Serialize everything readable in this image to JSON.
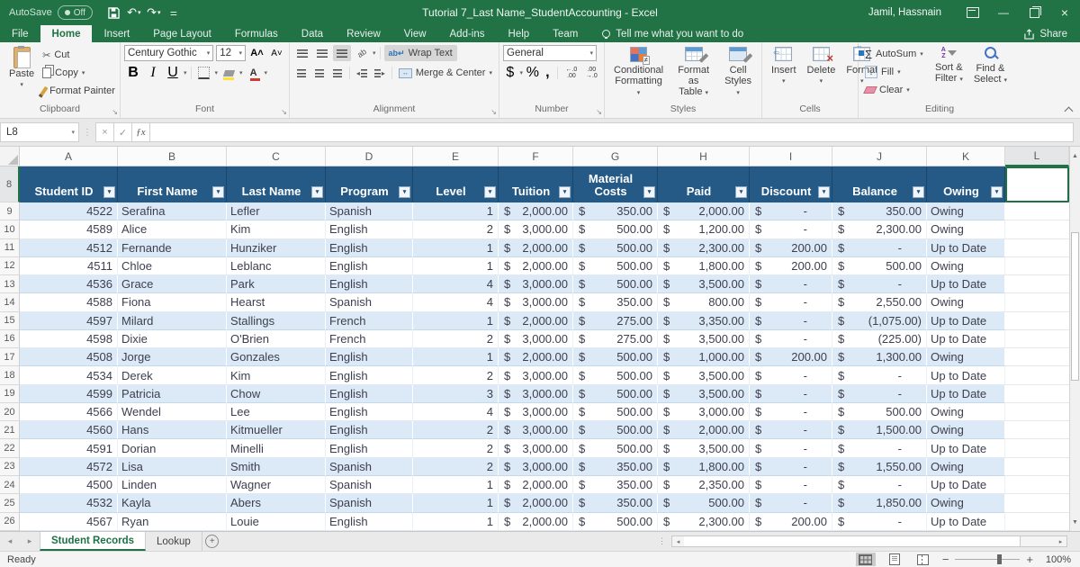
{
  "colors": {
    "title_green": "#217346",
    "table_header_blue": "#255A87",
    "band_blue": "#DCE9F6",
    "selection_green": "#1E7145",
    "fill_yellow": "#FFE13B",
    "font_color_red": "#D03B2F"
  },
  "titlebar": {
    "autosave": "AutoSave",
    "autosave_state": "Off",
    "title": "Tutorial 7_Last Name_StudentAccounting  -  Excel",
    "user": "Jamil, Hassnain"
  },
  "tabs": {
    "items": [
      {
        "label": "File"
      },
      {
        "label": "Home",
        "active": true
      },
      {
        "label": "Insert"
      },
      {
        "label": "Page Layout"
      },
      {
        "label": "Formulas"
      },
      {
        "label": "Data"
      },
      {
        "label": "Review"
      },
      {
        "label": "View"
      },
      {
        "label": "Add-ins"
      },
      {
        "label": "Help"
      },
      {
        "label": "Team"
      }
    ],
    "tell_me": "Tell me what you want to do",
    "share": "Share"
  },
  "ribbon": {
    "clipboard": {
      "label": "Clipboard",
      "paste": "Paste",
      "cut": "Cut",
      "copy": "Copy",
      "format_painter": "Format Painter"
    },
    "font": {
      "label": "Font",
      "family": "Century Gothic",
      "size": "12",
      "bold": "B",
      "italic": "I",
      "underline": "U"
    },
    "alignment": {
      "label": "Alignment",
      "wrap_text": "Wrap Text",
      "merge_center": "Merge & Center"
    },
    "number": {
      "label": "Number",
      "format": "General",
      "currency": "$",
      "percent": "%",
      "comma": ","
    },
    "styles": {
      "label": "Styles",
      "conditional_line1": "Conditional",
      "conditional_line2": "Formatting",
      "format_table_line1": "Format as",
      "format_table_line2": "Table",
      "cell_styles_line1": "Cell",
      "cell_styles_line2": "Styles"
    },
    "cells": {
      "label": "Cells",
      "insert": "Insert",
      "delete": "Delete",
      "format": "Format"
    },
    "editing": {
      "label": "Editing",
      "autosum": "AutoSum",
      "fill": "Fill",
      "clear": "Clear",
      "sort_line1": "Sort &",
      "sort_line2": "Filter",
      "find_line1": "Find &",
      "find_line2": "Select"
    }
  },
  "formula_bar": {
    "name_box": "L8",
    "formula": ""
  },
  "sheet": {
    "columns": [
      "A",
      "B",
      "C",
      "D",
      "E",
      "F",
      "G",
      "H",
      "I",
      "J",
      "K",
      "L"
    ],
    "row_numbers": [
      8,
      9,
      10,
      11,
      12,
      13,
      14,
      15,
      16,
      17,
      18,
      19,
      20,
      21,
      22,
      23,
      24,
      25,
      26
    ],
    "active_cell": "L8",
    "currency_symbol": "$",
    "table": {
      "headers": [
        "Student ID",
        "First Name",
        "Last Name",
        "Program",
        "Level",
        "Tuition",
        "Material Costs",
        "Paid",
        "Discount",
        "Balance",
        "Owing"
      ],
      "rows": [
        [
          "4522",
          "Serafina",
          "Lefler",
          "Spanish",
          "1",
          "2,000.00",
          "350.00",
          "2,000.00",
          "-",
          "350.00",
          "Owing"
        ],
        [
          "4589",
          "Alice",
          "Kim",
          "English",
          "2",
          "3,000.00",
          "500.00",
          "1,200.00",
          "-",
          "2,300.00",
          "Owing"
        ],
        [
          "4512",
          "Fernande",
          "Hunziker",
          "English",
          "1",
          "2,000.00",
          "500.00",
          "2,300.00",
          "200.00",
          "-",
          "Up to Date"
        ],
        [
          "4511",
          "Chloe",
          "Leblanc",
          "English",
          "1",
          "2,000.00",
          "500.00",
          "1,800.00",
          "200.00",
          "500.00",
          "Owing"
        ],
        [
          "4536",
          "Grace",
          "Park",
          "English",
          "4",
          "3,000.00",
          "500.00",
          "3,500.00",
          "-",
          "-",
          "Up to Date"
        ],
        [
          "4588",
          "Fiona",
          "Hearst",
          "Spanish",
          "4",
          "3,000.00",
          "350.00",
          "800.00",
          "-",
          "2,550.00",
          "Owing"
        ],
        [
          "4597",
          "Milard",
          "Stallings",
          "French",
          "1",
          "2,000.00",
          "275.00",
          "3,350.00",
          "-",
          "(1,075.00)",
          "Up to Date"
        ],
        [
          "4598",
          "Dixie",
          "O'Brien",
          "French",
          "2",
          "3,000.00",
          "275.00",
          "3,500.00",
          "-",
          "(225.00)",
          "Up to Date"
        ],
        [
          "4508",
          "Jorge",
          "Gonzales",
          "English",
          "1",
          "2,000.00",
          "500.00",
          "1,000.00",
          "200.00",
          "1,300.00",
          "Owing"
        ],
        [
          "4534",
          "Derek",
          "Kim",
          "English",
          "2",
          "3,000.00",
          "500.00",
          "3,500.00",
          "-",
          "-",
          "Up to Date"
        ],
        [
          "4599",
          "Patricia",
          "Chow",
          "English",
          "3",
          "3,000.00",
          "500.00",
          "3,500.00",
          "-",
          "-",
          "Up to Date"
        ],
        [
          "4566",
          "Wendel",
          "Lee",
          "English",
          "4",
          "3,000.00",
          "500.00",
          "3,000.00",
          "-",
          "500.00",
          "Owing"
        ],
        [
          "4560",
          "Hans",
          "Kitmueller",
          "English",
          "2",
          "3,000.00",
          "500.00",
          "2,000.00",
          "-",
          "1,500.00",
          "Owing"
        ],
        [
          "4591",
          "Dorian",
          "Minelli",
          "English",
          "2",
          "3,000.00",
          "500.00",
          "3,500.00",
          "-",
          "-",
          "Up to Date"
        ],
        [
          "4572",
          "Lisa",
          "Smith",
          "Spanish",
          "2",
          "3,000.00",
          "350.00",
          "1,800.00",
          "-",
          "1,550.00",
          "Owing"
        ],
        [
          "4500",
          "Linden",
          "Wagner",
          "Spanish",
          "1",
          "2,000.00",
          "350.00",
          "2,350.00",
          "-",
          "-",
          "Up to Date"
        ],
        [
          "4532",
          "Kayla",
          "Abers",
          "Spanish",
          "1",
          "2,000.00",
          "350.00",
          "500.00",
          "-",
          "1,850.00",
          "Owing"
        ],
        [
          "4567",
          "Ryan",
          "Louie",
          "English",
          "1",
          "2,000.00",
          "500.00",
          "2,300.00",
          "200.00",
          "-",
          "Up to Date"
        ]
      ]
    }
  },
  "sheet_tabs": {
    "tabs": [
      {
        "label": "Student Records",
        "active": true
      },
      {
        "label": "Lookup",
        "active": false
      }
    ]
  },
  "status_bar": {
    "ready": "Ready",
    "zoom": "100%"
  }
}
